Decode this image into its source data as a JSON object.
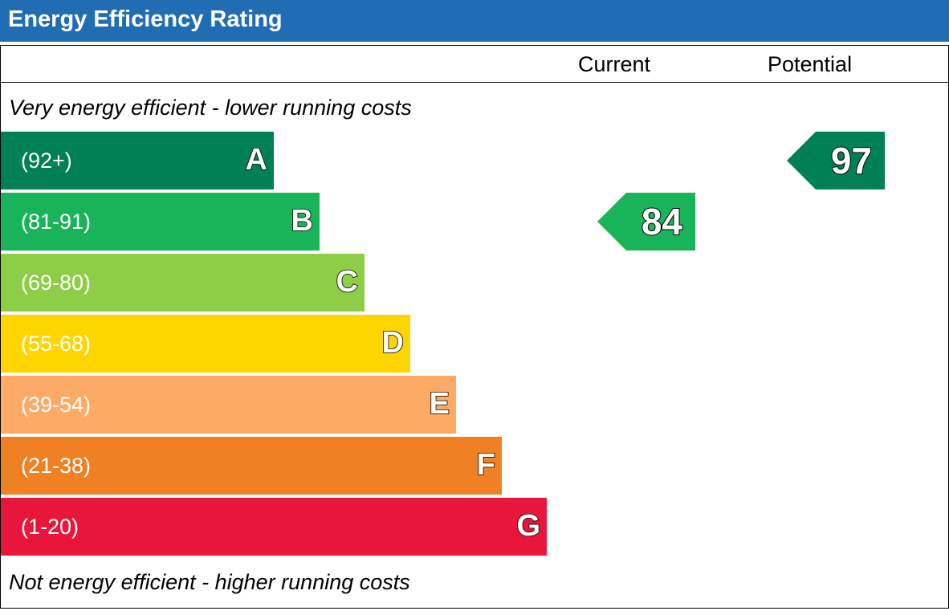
{
  "header": {
    "title": "Energy Efficiency Rating"
  },
  "columns": {
    "current": "Current",
    "potential": "Potential"
  },
  "captions": {
    "top": "Very energy efficient - lower running costs",
    "bottom": "Not energy efficient - higher running costs"
  },
  "chart_data": {
    "type": "bar",
    "title": "Energy Efficiency Rating",
    "bands": [
      {
        "letter": "A",
        "range": "(92+)",
        "color": "#008054"
      },
      {
        "letter": "B",
        "range": "(81-91)",
        "color": "#19b459"
      },
      {
        "letter": "C",
        "range": "(69-80)",
        "color": "#8dce46"
      },
      {
        "letter": "D",
        "range": "(55-68)",
        "color": "#ffd500"
      },
      {
        "letter": "E",
        "range": "(39-54)",
        "color": "#fcaa65"
      },
      {
        "letter": "F",
        "range": "(21-38)",
        "color": "#ef8023"
      },
      {
        "letter": "G",
        "range": "(1-20)",
        "color": "#e9153b"
      }
    ],
    "ratings": [
      {
        "column": "Current",
        "value": 84,
        "band": "B",
        "color": "#19b459"
      },
      {
        "column": "Potential",
        "value": 97,
        "band": "A",
        "color": "#008054"
      }
    ]
  }
}
